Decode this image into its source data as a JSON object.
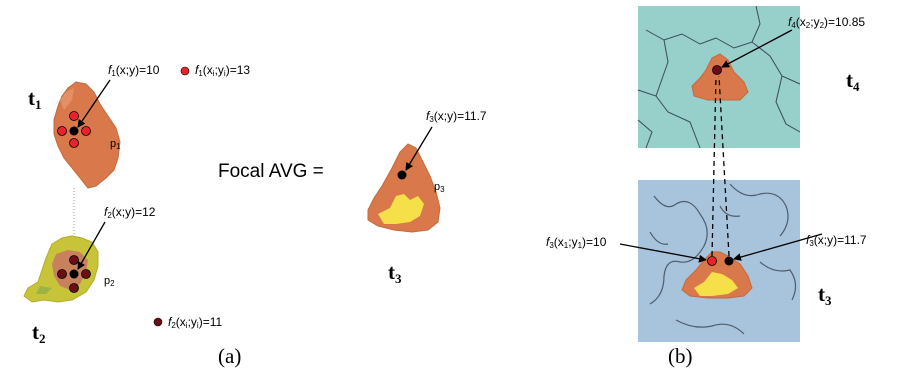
{
  "panel_a": {
    "caption": "(a)",
    "t1": {
      "letter": "t",
      "sub": "1"
    },
    "t2": {
      "letter": "t",
      "sub": "2"
    },
    "t3": {
      "letter": "t",
      "sub": "3"
    },
    "p1": {
      "letter": "p",
      "sub": "1"
    },
    "p2": {
      "letter": "p",
      "sub": "2"
    },
    "p3": {
      "letter": "p",
      "sub": "3"
    },
    "f1_center": {
      "f": "f",
      "fsub": "1",
      "arg": "(x;y)=10"
    },
    "f1_neighbor": {
      "f": "f",
      "fsub": "1",
      "arg_pre": "(x",
      "arg_sub1": "i",
      "arg_mid": ";y",
      "arg_sub2": "i",
      "arg_post": ")=13"
    },
    "f2_center": {
      "f": "f",
      "fsub": "2",
      "arg": "(x;y)=12"
    },
    "f2_neighbor": {
      "f": "f",
      "fsub": "2",
      "arg_pre": "(x",
      "arg_sub1": "i",
      "arg_mid": ";y",
      "arg_sub2": "i",
      "arg_post": ")=11"
    },
    "f3_center": {
      "f": "f",
      "fsub": "3",
      "arg": "(x;y)=11.7"
    },
    "focal_text": "Focal AVG ="
  },
  "panel_b": {
    "caption": "(b)",
    "t4": {
      "letter": "t",
      "sub": "4"
    },
    "t3": {
      "letter": "t",
      "sub": "3"
    },
    "f4_label": {
      "f": "f",
      "fsub": "4",
      "arg_pre": "(x",
      "arg_sub1": "2",
      "arg_mid": ";y",
      "arg_sub2": "2",
      "arg_post": ")=10.85"
    },
    "f3_left_label": {
      "f": "f",
      "fsub": "3",
      "arg_pre": "(x",
      "arg_sub1": "1",
      "arg_mid": ";y",
      "arg_sub2": "1",
      "arg_post": ")=10"
    },
    "f3_right_label": {
      "f": "f",
      "fsub": "3",
      "arg": "(x;y)=11.7"
    }
  },
  "colors": {
    "region_orange": "#d9784a",
    "region_yellow": "#f5e04a",
    "region_olive": "#c8c43a",
    "map_teal": "#97cfcb",
    "map_blue": "#a8c3dc",
    "dot_red": "#e8242a",
    "dot_darkred": "#6b0f16",
    "dot_black": "#000000"
  }
}
